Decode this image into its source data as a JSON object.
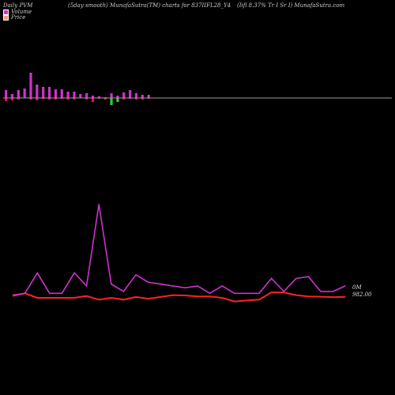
{
  "header": {
    "left": "Daily PVM",
    "center": "(5day smooth) MunafaSutra(TM) charts for 837IIFL28_Y4",
    "right": "(Iifl 8.37% Tr I Sr I) MunafaSutra.com"
  },
  "legend": [
    {
      "label": "Volume",
      "color": "#cc33cc"
    },
    {
      "label": "Price",
      "color": "#ff9966"
    }
  ],
  "colors": {
    "volume_up": "#cc33cc",
    "volume_down": "#ff0066",
    "volume_neg": "#33cc33",
    "pvm_line": "#cc33cc",
    "price_line": "#ff2222",
    "baseline": "#999999"
  },
  "chart_data": {
    "type": "line",
    "volume_bars": [
      {
        "up": 10,
        "down": 4
      },
      {
        "up": 5,
        "down": 3
      },
      {
        "up": 10,
        "down": 2
      },
      {
        "up": 12,
        "down": 0
      },
      {
        "up": 32,
        "down": 2
      },
      {
        "up": 17,
        "down": 3
      },
      {
        "up": 14,
        "down": 1
      },
      {
        "up": 14,
        "down": 2
      },
      {
        "up": 11,
        "down": 2
      },
      {
        "up": 11,
        "down": 1
      },
      {
        "up": 8,
        "down": 2
      },
      {
        "up": 8,
        "down": 2
      },
      {
        "up": 5,
        "down": 0
      },
      {
        "up": 6,
        "down": 2
      },
      {
        "up": 3,
        "down": 5
      },
      {
        "up": 2,
        "down": 1
      },
      {
        "up": 1,
        "down": 2
      },
      {
        "up": 6,
        "down": 9
      },
      {
        "up": 3,
        "down": 5
      },
      {
        "up": 7,
        "down": 2
      },
      {
        "up": 10,
        "down": 1
      },
      {
        "up": 6,
        "down": 2
      },
      {
        "up": 4,
        "down": 2
      },
      {
        "up": 4,
        "down": 1
      }
    ],
    "series": [
      {
        "values": [
          1,
          2,
          13,
          2,
          2,
          13,
          6,
          50,
          7,
          3,
          12,
          8,
          7,
          6,
          5,
          6,
          2,
          6,
          2,
          2,
          2,
          10,
          3,
          10,
          11,
          3,
          3,
          6
        ]
      },
      {
        "values": [
          1,
          2.5,
          0,
          0,
          0,
          0,
          1,
          -1,
          0,
          -1,
          0.5,
          -0.5,
          0.5,
          1.5,
          1.3,
          0.8,
          0.8,
          0,
          -2,
          -1.5,
          -1,
          3,
          3,
          1.5,
          0.8,
          0.6,
          0.4,
          0.5
        ]
      }
    ],
    "price_label": "982.00",
    "volume_label": "0M"
  }
}
